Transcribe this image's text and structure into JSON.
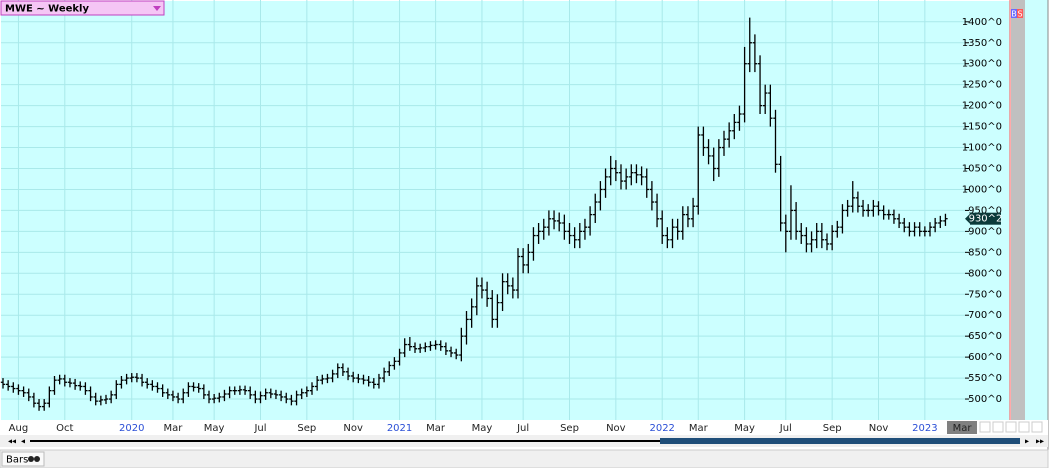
{
  "chart_data": {
    "type": "ohlc",
    "color": "#000000",
    "background": "#ccffff",
    "grid": true,
    "ylim": [
      450,
      1452
    ],
    "yticks": [
      {
        "value": 500,
        "label": "500^0"
      },
      {
        "value": 550,
        "label": "550^0"
      },
      {
        "value": 600,
        "label": "600^0"
      },
      {
        "value": 650,
        "label": "650^0"
      },
      {
        "value": 700,
        "label": "700^0"
      },
      {
        "value": 750,
        "label": "750^0"
      },
      {
        "value": 800,
        "label": "800^0"
      },
      {
        "value": 850,
        "label": "850^0"
      },
      {
        "value": 900,
        "label": "900^0"
      },
      {
        "value": 950,
        "label": "950^0"
      },
      {
        "value": 1000,
        "label": "1000^0"
      },
      {
        "value": 1050,
        "label": "1050^0"
      },
      {
        "value": 1100,
        "label": "1100^0"
      },
      {
        "value": 1150,
        "label": "1150^0"
      },
      {
        "value": 1200,
        "label": "1200^0"
      },
      {
        "value": 1250,
        "label": "1250^0"
      },
      {
        "value": 1300,
        "label": "1300^0"
      },
      {
        "value": 1350,
        "label": "1350^0"
      },
      {
        "value": 1400,
        "label": "1400^0"
      }
    ],
    "last_price": {
      "value": 930.25,
      "label": "930^2"
    },
    "categories": [
      null,
      null,
      null,
      "Aug",
      null,
      null,
      null,
      null,
      null,
      null,
      null,
      null,
      "Oct",
      null,
      null,
      null,
      null,
      null,
      null,
      null,
      null,
      null,
      null,
      null,
      null,
      "2020",
      null,
      null,
      null,
      null,
      null,
      null,
      null,
      "Mar",
      null,
      null,
      null,
      null,
      null,
      null,
      null,
      "May",
      null,
      null,
      null,
      null,
      null,
      null,
      null,
      null,
      "Jul",
      null,
      null,
      null,
      null,
      null,
      null,
      null,
      null,
      "Sep",
      null,
      null,
      null,
      null,
      null,
      null,
      null,
      null,
      "Nov",
      null,
      null,
      null,
      null,
      null,
      null,
      null,
      null,
      "2021",
      null,
      null,
      null,
      null,
      null,
      null,
      "Mar",
      null,
      null,
      null,
      null,
      null,
      null,
      null,
      null,
      "May",
      null,
      null,
      null,
      null,
      null,
      null,
      null,
      "Jul",
      null,
      null,
      null,
      null,
      null,
      null,
      null,
      null,
      "Sep",
      null,
      null,
      null,
      null,
      null,
      null,
      null,
      null,
      "Nov",
      null,
      null,
      null,
      null,
      null,
      null,
      null,
      null,
      "2022",
      null,
      null,
      null,
      null,
      null,
      null,
      "Mar",
      null,
      null,
      null,
      null,
      null,
      null,
      null,
      null,
      "May",
      null,
      null,
      null,
      null,
      null,
      null,
      null,
      "Jul",
      null,
      null,
      null,
      null,
      null,
      null,
      null,
      null,
      "Sep",
      null,
      null,
      null,
      null,
      null,
      null,
      null,
      null,
      "Nov",
      null,
      null,
      null,
      null,
      null,
      null,
      null,
      null,
      "2023",
      null,
      null,
      null,
      null
    ],
    "open": [
      540,
      535,
      530,
      525,
      520,
      515,
      505,
      490,
      482,
      490,
      520,
      545,
      548,
      540,
      538,
      532,
      530,
      520,
      505,
      495,
      498,
      500,
      510,
      535,
      545,
      550,
      552,
      550,
      540,
      535,
      530,
      525,
      515,
      510,
      505,
      500,
      515,
      530,
      528,
      525,
      510,
      500,
      502,
      505,
      512,
      520,
      520,
      522,
      520,
      510,
      500,
      508,
      515,
      512,
      510,
      505,
      500,
      495,
      510,
      515,
      520,
      530,
      545,
      548,
      550,
      560,
      575,
      565,
      555,
      550,
      548,
      545,
      540,
      535,
      550,
      565,
      580,
      590,
      610,
      630,
      625,
      620,
      622,
      625,
      628,
      630,
      625,
      615,
      610,
      605,
      650,
      690,
      720,
      770,
      760,
      740,
      690,
      730,
      780,
      770,
      760,
      840,
      820,
      850,
      890,
      900,
      910,
      930,
      925,
      920,
      900,
      890,
      880,
      900,
      910,
      940,
      970,
      1000,
      1030,
      1050,
      1040,
      1020,
      1030,
      1040,
      1035,
      1030,
      1000,
      970,
      930,
      890,
      880,
      910,
      900,
      940,
      930,
      960,
      1130,
      1100,
      1080,
      1050,
      1100,
      1120,
      1140,
      1160,
      1180,
      1300,
      1350,
      1300,
      1200,
      1230,
      1170,
      1060,
      920,
      900,
      950,
      900,
      890,
      870,
      880,
      900,
      880,
      870,
      900,
      910,
      950,
      960,
      980,
      960,
      950,
      950,
      960,
      950,
      940,
      940,
      930,
      920,
      910,
      900,
      910,
      900,
      900,
      910,
      920,
      925
    ],
    "high": [
      550,
      545,
      540,
      535,
      530,
      525,
      515,
      500,
      500,
      530,
      555,
      558,
      558,
      550,
      548,
      542,
      540,
      530,
      515,
      508,
      510,
      520,
      545,
      555,
      560,
      562,
      562,
      560,
      550,
      545,
      540,
      535,
      525,
      520,
      515,
      525,
      540,
      540,
      538,
      535,
      520,
      512,
      515,
      522,
      530,
      530,
      532,
      532,
      530,
      520,
      518,
      525,
      525,
      522,
      520,
      515,
      510,
      520,
      525,
      530,
      540,
      555,
      558,
      560,
      570,
      585,
      585,
      575,
      565,
      560,
      558,
      555,
      550,
      560,
      575,
      590,
      600,
      620,
      645,
      648,
      635,
      632,
      635,
      638,
      640,
      640,
      635,
      625,
      620,
      670,
      710,
      740,
      790,
      790,
      780,
      760,
      750,
      800,
      800,
      790,
      860,
      860,
      870,
      910,
      920,
      930,
      950,
      950,
      945,
      940,
      920,
      910,
      920,
      930,
      960,
      990,
      1020,
      1050,
      1080,
      1070,
      1060,
      1050,
      1060,
      1060,
      1055,
      1050,
      1020,
      990,
      950,
      910,
      930,
      930,
      960,
      960,
      980,
      1150,
      1150,
      1120,
      1100,
      1120,
      1140,
      1160,
      1180,
      1200,
      1340,
      1410,
      1370,
      1320,
      1250,
      1250,
      1190,
      1080,
      940,
      1010,
      970,
      920,
      910,
      900,
      920,
      920,
      895,
      915,
      925,
      965,
      975,
      1020,
      995,
      975,
      965,
      975,
      972,
      962,
      952,
      952,
      942,
      932,
      922,
      922,
      922,
      912,
      922,
      932,
      937,
      942
    ],
    "low": [
      525,
      520,
      515,
      510,
      505,
      495,
      480,
      472,
      472,
      480,
      510,
      535,
      530,
      528,
      522,
      520,
      510,
      495,
      485,
      485,
      488,
      490,
      500,
      525,
      535,
      540,
      540,
      530,
      525,
      520,
      515,
      505,
      500,
      495,
      490,
      490,
      505,
      518,
      515,
      500,
      490,
      490,
      492,
      495,
      502,
      510,
      510,
      510,
      500,
      490,
      490,
      498,
      502,
      500,
      495,
      490,
      485,
      485,
      500,
      505,
      510,
      520,
      535,
      538,
      540,
      550,
      555,
      545,
      540,
      538,
      535,
      530,
      525,
      525,
      540,
      555,
      570,
      580,
      600,
      615,
      610,
      610,
      612,
      615,
      618,
      615,
      605,
      600,
      595,
      590,
      630,
      670,
      700,
      740,
      720,
      670,
      670,
      710,
      750,
      740,
      740,
      800,
      800,
      830,
      870,
      880,
      890,
      905,
      900,
      880,
      870,
      860,
      860,
      880,
      890,
      920,
      950,
      980,
      1010,
      1020,
      1000,
      1000,
      1010,
      1015,
      1010,
      980,
      950,
      910,
      870,
      860,
      860,
      880,
      880,
      910,
      910,
      940,
      1080,
      1060,
      1020,
      1030,
      1080,
      1100,
      1120,
      1140,
      1160,
      1280,
      1280,
      1180,
      1180,
      1150,
      1040,
      900,
      850,
      880,
      880,
      870,
      850,
      850,
      860,
      860,
      855,
      855,
      885,
      895,
      935,
      945,
      945,
      935,
      935,
      935,
      938,
      928,
      928,
      918,
      908,
      898,
      888,
      888,
      888,
      888,
      888,
      898,
      908,
      913
    ],
    "close": [
      535,
      530,
      525,
      520,
      515,
      505,
      490,
      482,
      490,
      520,
      545,
      548,
      540,
      538,
      532,
      530,
      520,
      505,
      495,
      498,
      500,
      510,
      535,
      545,
      550,
      552,
      550,
      540,
      535,
      530,
      525,
      515,
      510,
      505,
      500,
      515,
      530,
      528,
      525,
      510,
      500,
      502,
      505,
      512,
      520,
      520,
      522,
      520,
      510,
      500,
      508,
      515,
      512,
      510,
      505,
      500,
      495,
      510,
      515,
      520,
      530,
      545,
      548,
      550,
      560,
      575,
      565,
      555,
      550,
      548,
      545,
      540,
      535,
      550,
      565,
      580,
      590,
      610,
      630,
      625,
      620,
      622,
      625,
      628,
      630,
      625,
      615,
      610,
      605,
      650,
      690,
      720,
      770,
      760,
      740,
      690,
      730,
      780,
      770,
      760,
      840,
      820,
      850,
      890,
      900,
      910,
      930,
      925,
      920,
      900,
      890,
      880,
      900,
      910,
      940,
      970,
      1000,
      1030,
      1050,
      1040,
      1020,
      1030,
      1040,
      1035,
      1030,
      1000,
      970,
      930,
      890,
      880,
      910,
      900,
      940,
      930,
      960,
      1130,
      1100,
      1080,
      1050,
      1100,
      1120,
      1140,
      1160,
      1180,
      1300,
      1350,
      1300,
      1200,
      1230,
      1170,
      1060,
      920,
      900,
      950,
      900,
      890,
      870,
      880,
      900,
      880,
      870,
      900,
      910,
      950,
      960,
      980,
      960,
      950,
      950,
      960,
      950,
      940,
      940,
      930,
      920,
      910,
      900,
      910,
      900,
      900,
      910,
      920,
      925,
      930.25
    ]
  },
  "ui": {
    "symbol_menu": "MWE ~ Weekly",
    "buttons": [
      "B",
      "S"
    ],
    "current_period": "Mar",
    "status": "Bars"
  }
}
